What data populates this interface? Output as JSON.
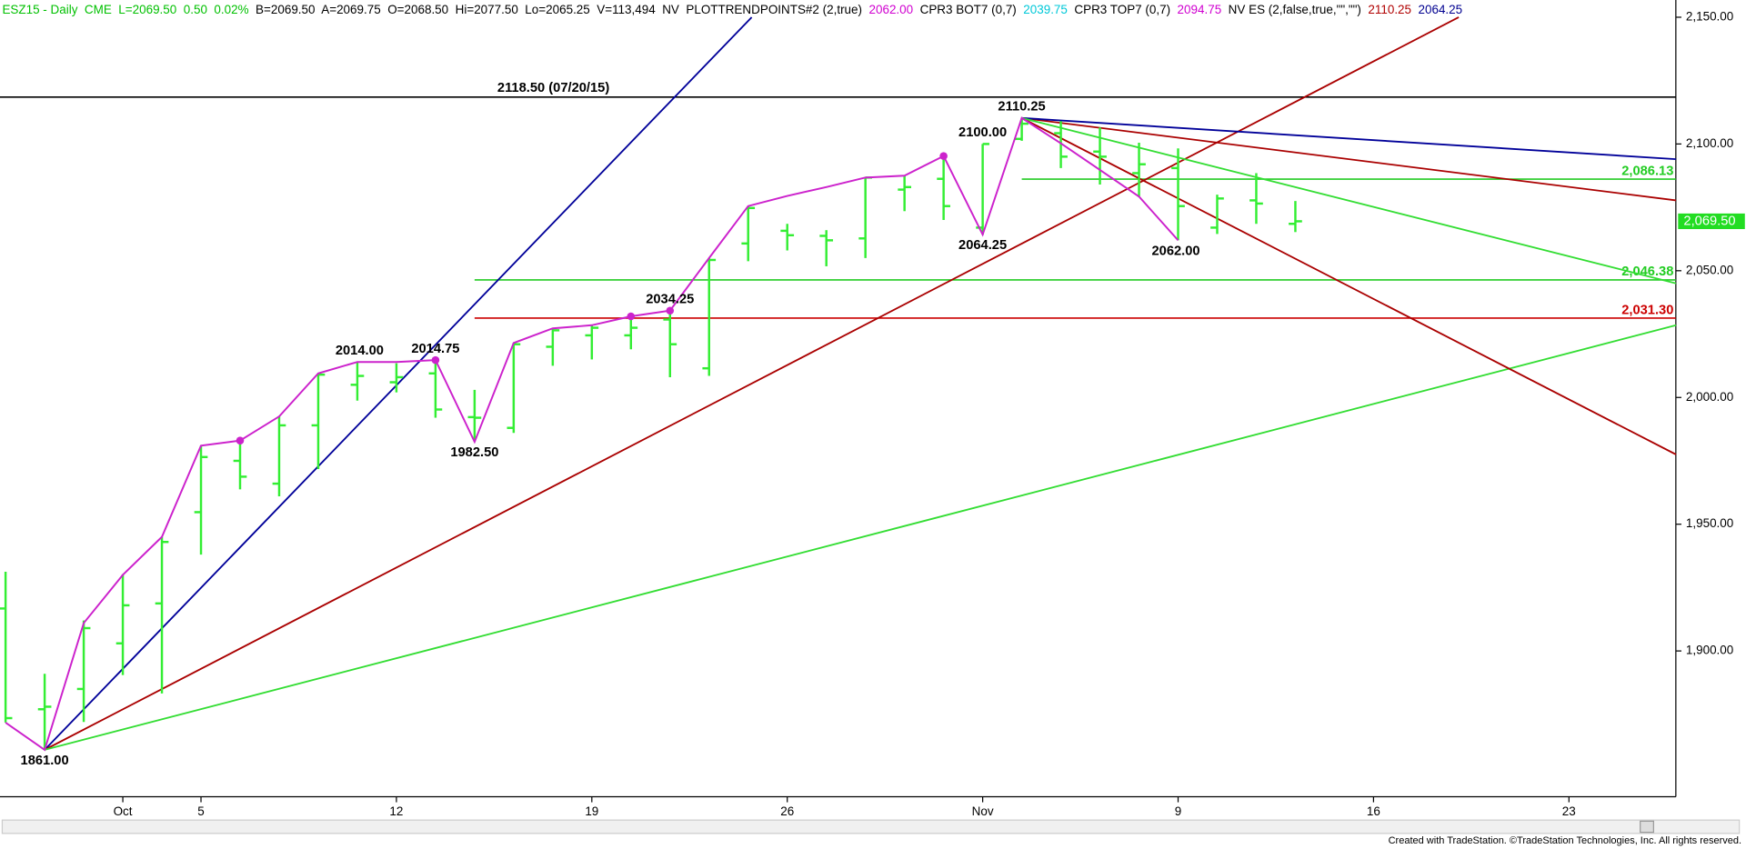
{
  "chart_data": {
    "type": "ohlc",
    "header": [
      {
        "text": "ESZ15 - Daily  CME  L=2069.50  0.50  0.02%  ",
        "color": "#00c000"
      },
      {
        "text": "B=2069.50  A=2069.75  O=2068.50  Hi=2077.50  Lo=2065.25  V=113,494  NV  PLOTTRENDPOINTS#2 (2,true)  ",
        "color": "#000000"
      },
      {
        "text": "2062.00  ",
        "color": "#d000d0"
      },
      {
        "text": "CPR3 BOT7 (0,7)  ",
        "color": "#000000"
      },
      {
        "text": "2039.75  ",
        "color": "#00c8d8"
      },
      {
        "text": "CPR3 TOP7 (0,7)  ",
        "color": "#000000"
      },
      {
        "text": "2094.75  ",
        "color": "#d000d0"
      },
      {
        "text": "NV ES (2,false,true,\"\",\"\")  ",
        "color": "#000000"
      },
      {
        "text": "2110.25  ",
        "color": "#b00000"
      },
      {
        "text": "2064.25",
        "color": "#000090"
      }
    ],
    "categories": [
      null,
      null,
      null,
      "Oct",
      null,
      "5",
      null,
      null,
      null,
      null,
      "12",
      null,
      null,
      null,
      null,
      "19",
      null,
      null,
      null,
      null,
      "26",
      null,
      null,
      null,
      null,
      "Nov",
      null,
      null,
      null,
      null,
      "9",
      null,
      null,
      null,
      null,
      "16",
      null,
      null,
      null,
      null,
      "23",
      null,
      null
    ],
    "open": [
      1916.75,
      1877,
      1885,
      1903,
      1918.75,
      1954.75,
      1975,
      1966,
      1989,
      2005,
      2006,
      2009.5,
      1992.25,
      1988,
      2020,
      2024.5,
      2024.5,
      2030.75,
      2011.5,
      2060.75,
      2065.75,
      2063.75,
      2062.75,
      2082,
      2086.25,
      2067,
      2102,
      2104.25,
      2097,
      2088.5,
      2090.5,
      2067,
      2077.75,
      2068.5,
      null,
      null,
      null,
      null,
      null,
      null,
      null,
      null,
      null
    ],
    "high": [
      1931.25,
      1891,
      1912,
      1930.25,
      1945,
      1981,
      1983,
      1992.75,
      2009.5,
      2014,
      2013.5,
      2014.75,
      2003,
      2021.5,
      2027.25,
      2028.5,
      2032,
      2034.25,
      2055,
      2075.5,
      2068.5,
      2066,
      2086.75,
      2087.5,
      2095.25,
      2100,
      2110.25,
      2109,
      2106.5,
      2100.5,
      2098.25,
      2080,
      2088.5,
      2077.5,
      null,
      null,
      null,
      null,
      null,
      null,
      null,
      null,
      null
    ],
    "low": [
      1871.75,
      1861,
      1872,
      1890.5,
      1883.25,
      1938,
      1963.75,
      1961,
      1971.75,
      1998.75,
      2002,
      1992,
      1982.5,
      1986,
      2012.5,
      2015,
      2019,
      2008,
      2008.5,
      2053.75,
      2058,
      2051.75,
      2055,
      2073.5,
      2070,
      2064.25,
      2101.25,
      2090.5,
      2084,
      2079,
      2062,
      2064.5,
      2068.5,
      2065.25,
      null,
      null,
      null,
      null,
      null,
      null,
      null,
      null,
      null
    ],
    "close": [
      1873.5,
      1878,
      1909,
      1918,
      1943,
      1976.5,
      1968.75,
      1989,
      2009,
      2008.5,
      2008,
      1995.25,
      1992,
      2021,
      2026.5,
      2027.5,
      2027.5,
      2021,
      2054.25,
      2074.75,
      2064,
      2062,
      2086.75,
      2083,
      2075.5,
      2100,
      2108,
      2095,
      2095,
      2092,
      2075.5,
      2078.5,
      2076.5,
      2069.5,
      null,
      null,
      null,
      null,
      null,
      null,
      null,
      null,
      null
    ],
    "bar_color": "#33ee33",
    "trendpoints": {
      "color": "#cc22cc",
      "values": [
        1871.75,
        1861,
        1911,
        1930,
        1945,
        1981,
        1983,
        1992.5,
        2009.5,
        2014,
        2014,
        2014.75,
        1982.5,
        2021.5,
        2027.25,
        2028.5,
        2032,
        2034.25,
        2055,
        2075.5,
        2079.5,
        2083,
        2086.75,
        2087.5,
        2095.25,
        2064.25,
        2110.25,
        2100.25,
        2089.75,
        2079.25,
        2062,
        null,
        null,
        null,
        null,
        null,
        null,
        null,
        null,
        null,
        null,
        null,
        null
      ],
      "markers": [
        null,
        null,
        null,
        null,
        null,
        null,
        1983,
        null,
        null,
        null,
        null,
        2014.75,
        null,
        null,
        null,
        null,
        2032,
        2034.25,
        null,
        null,
        null,
        null,
        null,
        null,
        2095.25,
        null,
        null,
        null,
        null,
        null,
        null,
        null,
        null,
        null,
        null,
        null,
        null,
        null,
        null,
        null,
        null,
        null,
        null
      ]
    },
    "pivots": [
      {
        "value": 1861,
        "label": "1861.00"
      },
      {
        "value": 1982.5,
        "label": "1982.50"
      },
      {
        "value": 2014,
        "label": "2014.00"
      },
      {
        "value": 2014.75,
        "label": "2014.75"
      },
      {
        "value": 2034.25,
        "label": "2034.25"
      },
      {
        "value": 2064.25,
        "label": "2064.25"
      },
      {
        "value": 2100,
        "label": "2100.00"
      },
      {
        "value": 2110.25,
        "label": "2110.25"
      },
      {
        "value": 2062,
        "label": "2062.00"
      }
    ],
    "trendlines": [
      {
        "color": "#000099",
        "values": [
          1861,
          2150
        ]
      },
      {
        "color": "#aa0000",
        "values": [
          1861,
          2150
        ]
      },
      {
        "color": "#33dd33",
        "values": [
          1861,
          2028.5
        ]
      },
      {
        "color": "#aa0000",
        "values": [
          2110.25,
          1977.5
        ]
      },
      {
        "color": "#aa0000",
        "values": [
          2110.25,
          2077.75
        ]
      },
      {
        "color": "#000099",
        "values": [
          2110.25,
          2094
        ]
      },
      {
        "color": "#33dd33",
        "values": [
          2110.25,
          2045
        ]
      }
    ],
    "levels": [
      {
        "value": 2118.5,
        "label": "2118.50 (07/20/15)",
        "color": "#000000"
      },
      {
        "value": 2086.13,
        "label": "2,086.13",
        "color": "#22cc22"
      },
      {
        "value": 2046.38,
        "label": "2,046.38",
        "color": "#22cc22"
      },
      {
        "value": 2031.3,
        "label": "2,031.30",
        "color": "#cc0000"
      }
    ],
    "last_price": {
      "value": 2069.5,
      "label": "2,069.50",
      "color": "#22dd22"
    },
    "ylim": [
      1842.5,
      2156.8
    ],
    "yticks": [
      {
        "value": 1900,
        "label": "1,900.00"
      },
      {
        "value": 1950,
        "label": "1,950.00"
      },
      {
        "value": 2000,
        "label": "2,000.00"
      },
      {
        "value": 2050,
        "label": "2,050.00"
      },
      {
        "value": 2100,
        "label": "2,100.00"
      },
      {
        "value": 2150,
        "label": "2,150.00"
      }
    ],
    "footer": "Created with TradeStation. ©TradeStation Technologies, Inc. All rights reserved."
  }
}
